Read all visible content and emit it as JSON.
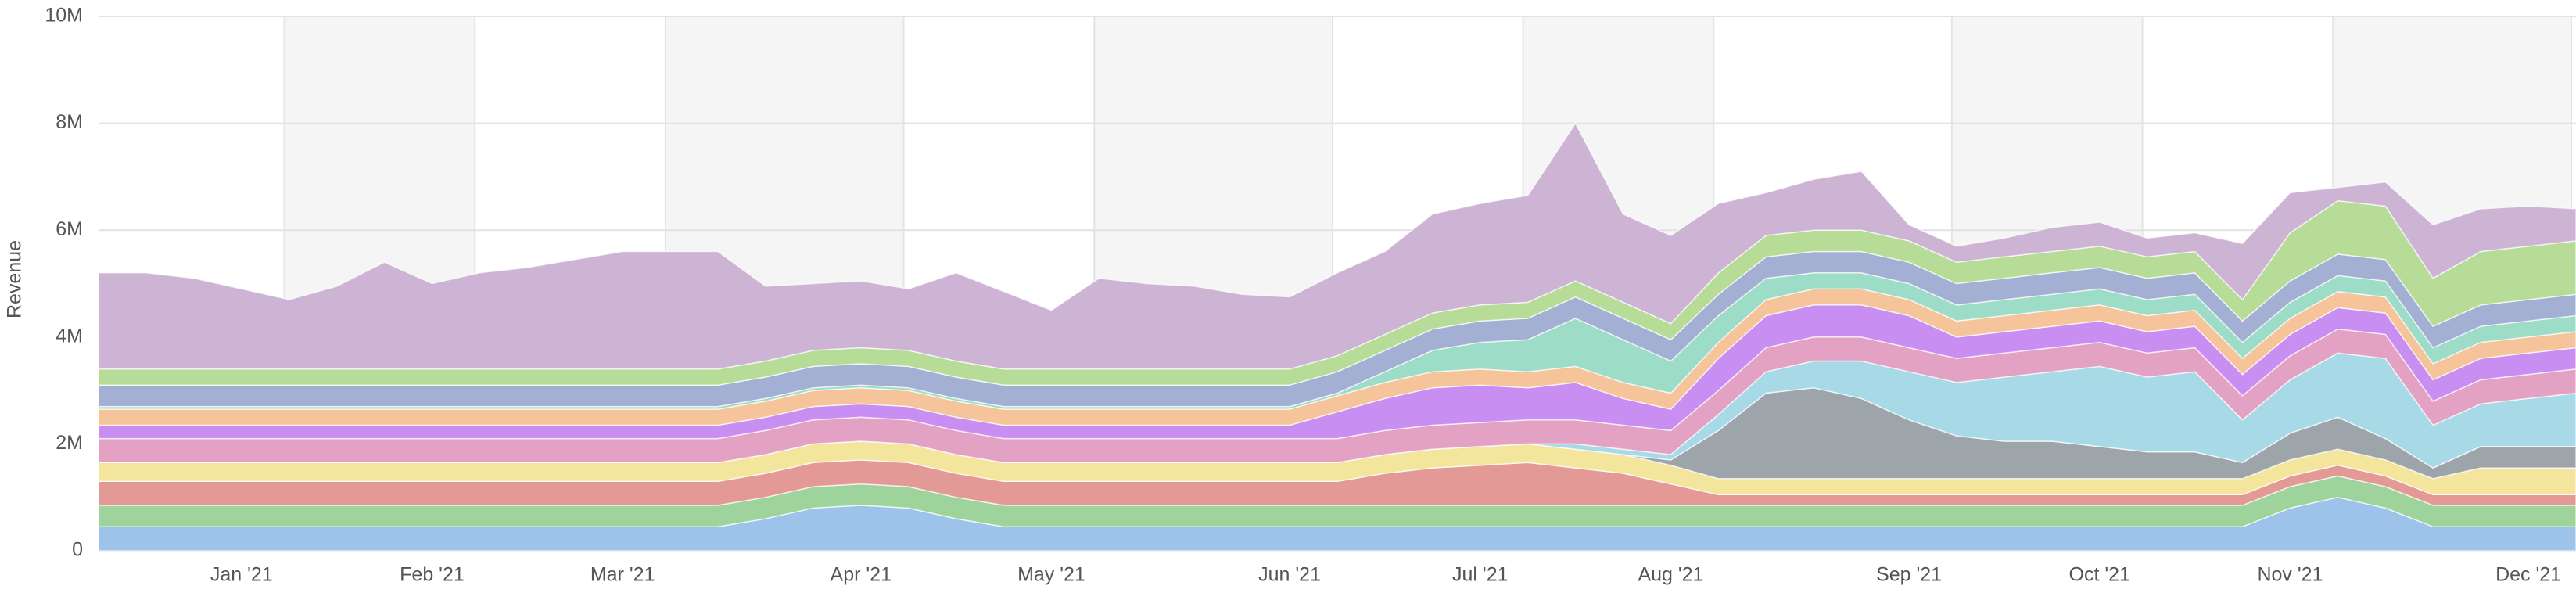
{
  "chart_data": {
    "type": "stacked_area",
    "y_axis_label": "Revenue",
    "categories": [
      null,
      null,
      null,
      "Jan '21",
      null,
      null,
      null,
      "Feb '21",
      null,
      null,
      null,
      "Mar '21",
      null,
      null,
      null,
      null,
      "Apr '21",
      null,
      null,
      null,
      "May '21",
      null,
      null,
      null,
      null,
      "Jun '21",
      null,
      null,
      null,
      "Jul '21",
      null,
      null,
      null,
      "Aug '21",
      null,
      null,
      null,
      null,
      "Sep '21",
      null,
      null,
      null,
      "Oct '21",
      null,
      null,
      null,
      "Nov '21",
      null,
      null,
      null,
      null,
      "Dec '21",
      null
    ],
    "ylim": [
      0,
      10000000
    ],
    "yticks": [
      0,
      {
        "value": 2000000,
        "label": "2M"
      },
      {
        "value": 4000000,
        "label": "4M"
      },
      {
        "value": 6000000,
        "label": "6M"
      },
      {
        "value": 8000000,
        "label": "8M"
      },
      {
        "value": 10000000,
        "label": "10M"
      }
    ],
    "grid": true,
    "series": [
      {
        "color": "#9ec3ea",
        "values": [
          450000,
          450000,
          450000,
          450000,
          450000,
          450000,
          450000,
          450000,
          450000,
          450000,
          450000,
          450000,
          450000,
          450000,
          600000,
          800000,
          850000,
          800000,
          600000,
          450000,
          450000,
          450000,
          450000,
          450000,
          450000,
          450000,
          450000,
          450000,
          450000,
          450000,
          450000,
          450000,
          450000,
          450000,
          450000,
          450000,
          450000,
          450000,
          450000,
          450000,
          450000,
          450000,
          450000,
          450000,
          450000,
          450000,
          800000,
          1000000,
          800000,
          450000,
          450000,
          450000,
          450000
        ]
      },
      {
        "color": "#9fd39c",
        "values": [
          400000,
          400000,
          400000,
          400000,
          400000,
          400000,
          400000,
          400000,
          400000,
          400000,
          400000,
          400000,
          400000,
          400000,
          400000,
          400000,
          400000,
          400000,
          400000,
          400000,
          400000,
          400000,
          400000,
          400000,
          400000,
          400000,
          400000,
          400000,
          400000,
          400000,
          400000,
          400000,
          400000,
          400000,
          400000,
          400000,
          400000,
          400000,
          400000,
          400000,
          400000,
          400000,
          400000,
          400000,
          400000,
          400000,
          400000,
          400000,
          400000,
          400000,
          400000,
          400000,
          400000
        ]
      },
      {
        "color": "#e39a96",
        "values": [
          450000,
          450000,
          450000,
          450000,
          450000,
          450000,
          450000,
          450000,
          450000,
          450000,
          450000,
          450000,
          450000,
          450000,
          450000,
          450000,
          450000,
          450000,
          450000,
          450000,
          450000,
          450000,
          450000,
          450000,
          450000,
          450000,
          450000,
          600000,
          700000,
          750000,
          800000,
          700000,
          600000,
          400000,
          200000,
          200000,
          200000,
          200000,
          200000,
          200000,
          200000,
          200000,
          200000,
          200000,
          200000,
          200000,
          200000,
          200000,
          200000,
          200000,
          200000,
          200000,
          200000
        ]
      },
      {
        "color": "#f3e59b",
        "values": [
          350000,
          350000,
          350000,
          350000,
          350000,
          350000,
          350000,
          350000,
          350000,
          350000,
          350000,
          350000,
          350000,
          350000,
          350000,
          350000,
          350000,
          350000,
          350000,
          350000,
          350000,
          350000,
          350000,
          350000,
          350000,
          350000,
          350000,
          350000,
          350000,
          350000,
          350000,
          350000,
          350000,
          350000,
          300000,
          300000,
          300000,
          300000,
          300000,
          300000,
          300000,
          300000,
          300000,
          300000,
          300000,
          300000,
          300000,
          300000,
          300000,
          300000,
          500000,
          500000,
          500000
        ]
      },
      {
        "color": "#9ea5aa",
        "values": [
          0,
          0,
          0,
          0,
          0,
          0,
          0,
          0,
          0,
          0,
          0,
          0,
          0,
          0,
          0,
          0,
          0,
          0,
          0,
          0,
          0,
          0,
          0,
          0,
          0,
          0,
          0,
          0,
          0,
          0,
          0,
          0,
          0,
          100000,
          900000,
          1600000,
          1700000,
          1500000,
          1100000,
          800000,
          700000,
          700000,
          600000,
          500000,
          500000,
          300000,
          500000,
          600000,
          400000,
          200000,
          400000,
          400000,
          400000
        ]
      },
      {
        "color": "#a7d9e6",
        "values": [
          0,
          0,
          0,
          0,
          0,
          0,
          0,
          0,
          0,
          0,
          0,
          0,
          0,
          0,
          0,
          0,
          0,
          0,
          0,
          0,
          0,
          0,
          0,
          0,
          0,
          0,
          0,
          0,
          0,
          0,
          0,
          100000,
          100000,
          100000,
          300000,
          400000,
          500000,
          700000,
          900000,
          1000000,
          1200000,
          1300000,
          1500000,
          1400000,
          1500000,
          800000,
          1000000,
          1200000,
          1500000,
          800000,
          800000,
          900000,
          1000000
        ]
      },
      {
        "color": "#e3a1c4",
        "values": [
          450000,
          450000,
          450000,
          450000,
          450000,
          450000,
          450000,
          450000,
          450000,
          450000,
          450000,
          450000,
          450000,
          450000,
          450000,
          450000,
          450000,
          450000,
          450000,
          450000,
          450000,
          450000,
          450000,
          450000,
          450000,
          450000,
          450000,
          450000,
          450000,
          450000,
          450000,
          450000,
          450000,
          450000,
          450000,
          450000,
          450000,
          450000,
          450000,
          450000,
          450000,
          450000,
          450000,
          450000,
          450000,
          450000,
          450000,
          450000,
          450000,
          450000,
          450000,
          450000,
          450000
        ]
      },
      {
        "color": "#c98ef2",
        "values": [
          250000,
          250000,
          250000,
          250000,
          250000,
          250000,
          250000,
          250000,
          250000,
          250000,
          250000,
          250000,
          250000,
          250000,
          250000,
          250000,
          250000,
          250000,
          250000,
          250000,
          250000,
          250000,
          250000,
          250000,
          250000,
          250000,
          500000,
          600000,
          700000,
          700000,
          600000,
          700000,
          500000,
          400000,
          600000,
          600000,
          600000,
          600000,
          600000,
          400000,
          400000,
          400000,
          400000,
          400000,
          400000,
          400000,
          400000,
          400000,
          400000,
          400000,
          400000,
          400000,
          400000
        ]
      },
      {
        "color": "#f5c49b",
        "values": [
          300000,
          300000,
          300000,
          300000,
          300000,
          300000,
          300000,
          300000,
          300000,
          300000,
          300000,
          300000,
          300000,
          300000,
          300000,
          300000,
          300000,
          300000,
          300000,
          300000,
          300000,
          300000,
          300000,
          300000,
          300000,
          300000,
          300000,
          300000,
          300000,
          300000,
          300000,
          300000,
          300000,
          300000,
          300000,
          300000,
          300000,
          300000,
          300000,
          300000,
          300000,
          300000,
          300000,
          300000,
          300000,
          300000,
          300000,
          300000,
          300000,
          300000,
          300000,
          300000,
          300000
        ]
      },
      {
        "color": "#9ddcc6",
        "values": [
          50000,
          50000,
          50000,
          50000,
          50000,
          50000,
          50000,
          50000,
          50000,
          50000,
          50000,
          50000,
          50000,
          50000,
          50000,
          50000,
          50000,
          50000,
          50000,
          50000,
          50000,
          50000,
          50000,
          50000,
          50000,
          50000,
          50000,
          200000,
          400000,
          500000,
          600000,
          900000,
          800000,
          600000,
          500000,
          400000,
          300000,
          300000,
          300000,
          300000,
          300000,
          300000,
          300000,
          300000,
          300000,
          300000,
          300000,
          300000,
          300000,
          300000,
          300000,
          300000,
          300000
        ]
      },
      {
        "color": "#a3afd3",
        "values": [
          400000,
          400000,
          400000,
          400000,
          400000,
          400000,
          400000,
          400000,
          400000,
          400000,
          400000,
          400000,
          400000,
          400000,
          400000,
          400000,
          400000,
          400000,
          400000,
          400000,
          400000,
          400000,
          400000,
          400000,
          400000,
          400000,
          400000,
          400000,
          400000,
          400000,
          400000,
          400000,
          400000,
          400000,
          400000,
          400000,
          400000,
          400000,
          400000,
          400000,
          400000,
          400000,
          400000,
          400000,
          400000,
          400000,
          400000,
          400000,
          400000,
          400000,
          400000,
          400000,
          400000
        ]
      },
      {
        "color": "#b6dc98",
        "values": [
          300000,
          300000,
          300000,
          300000,
          300000,
          300000,
          300000,
          300000,
          300000,
          300000,
          300000,
          300000,
          300000,
          300000,
          300000,
          300000,
          300000,
          300000,
          300000,
          300000,
          300000,
          300000,
          300000,
          300000,
          300000,
          300000,
          300000,
          300000,
          300000,
          300000,
          300000,
          300000,
          300000,
          300000,
          400000,
          400000,
          400000,
          400000,
          400000,
          400000,
          400000,
          400000,
          400000,
          400000,
          400000,
          400000,
          900000,
          1000000,
          1000000,
          900000,
          1000000,
          1000000,
          1000000
        ]
      },
      {
        "color": "#cdb3d4",
        "values": [
          1800000,
          1800000,
          1700000,
          1500000,
          1300000,
          1550000,
          2000000,
          1600000,
          1800000,
          1900000,
          2050000,
          2200000,
          2200000,
          2200000,
          1400000,
          1250000,
          1250000,
          1150000,
          1650000,
          1450000,
          1100000,
          1700000,
          1600000,
          1550000,
          1400000,
          1350000,
          1550000,
          1550000,
          1850000,
          1900000,
          2000000,
          2950000,
          1650000,
          1650000,
          1300000,
          800000,
          950000,
          1100000,
          300000,
          300000,
          350000,
          450000,
          450000,
          350000,
          350000,
          1050000,
          750000,
          250000,
          450000,
          1000000,
          800000,
          750000,
          600000
        ]
      }
    ]
  }
}
